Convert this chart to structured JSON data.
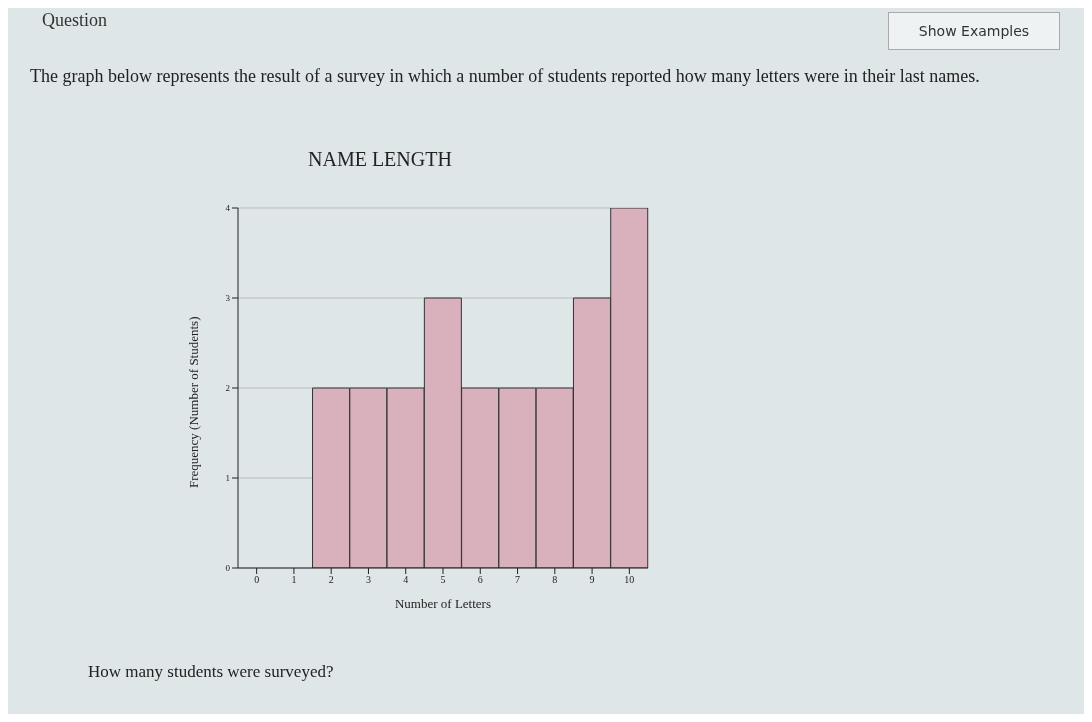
{
  "chart_data": {
    "type": "bar",
    "title": "NAME LENGTH",
    "xlabel": "Number of Letters",
    "ylabel": "Frequency (Number of Students)",
    "categories": [
      "0",
      "1",
      "2",
      "3",
      "4",
      "5",
      "6",
      "7",
      "8",
      "9",
      "10"
    ],
    "values": [
      0,
      0,
      2,
      2,
      2,
      3,
      2,
      2,
      2,
      3,
      4
    ],
    "color": "#d9b1bd",
    "ylim": [
      0,
      4
    ],
    "yticks": [
      0,
      1,
      2,
      3,
      4
    ],
    "grid": "y",
    "annotations": [
      "Question",
      "Show Examples",
      "The graph below represents the result of a survey in which a number of students reported how many letters were in their last names.",
      "How many students were surveyed?"
    ]
  }
}
